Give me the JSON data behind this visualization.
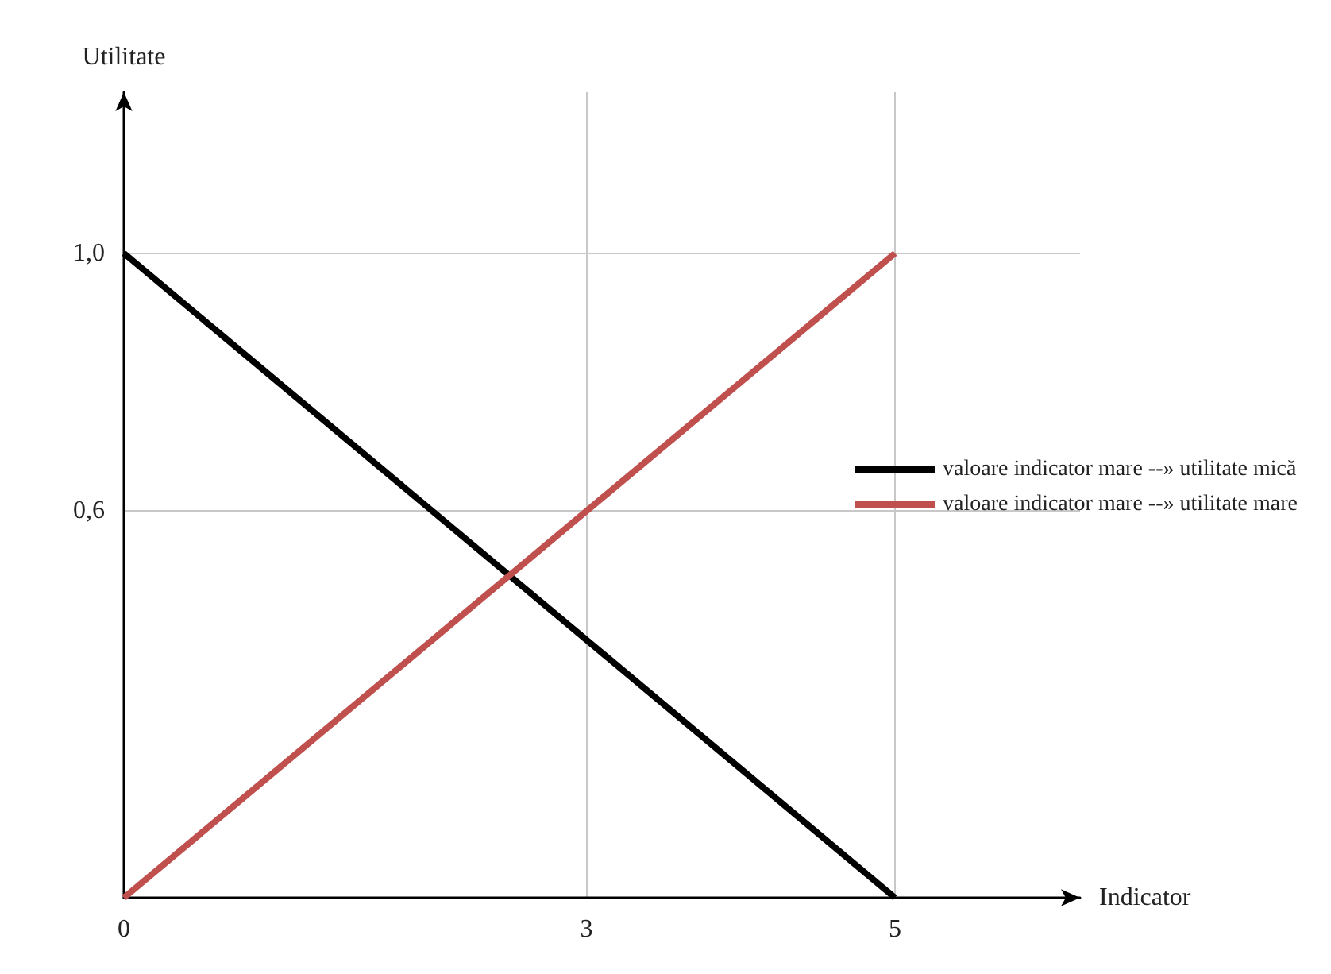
{
  "chart_data": {
    "type": "line",
    "xlabel": "Indicator",
    "ylabel": "Utilitate",
    "x": [
      0,
      5
    ],
    "series": [
      {
        "name": "valoare indicator mare --» utilitate mică",
        "color": "#000000",
        "values": [
          1,
          0
        ]
      },
      {
        "name": "valoare indicator mare --» utilitate mare",
        "color": "#c0504d",
        "values": [
          0,
          1
        ]
      }
    ],
    "xlim": [
      0,
      6.2
    ],
    "ylim": [
      0,
      1.25
    ],
    "xticks": [
      0,
      3,
      5
    ],
    "yticks": [
      {
        "value": 0,
        "label": null
      },
      {
        "value": 0.6,
        "label": "0,6"
      },
      {
        "value": 1,
        "label": "1,0"
      }
    ],
    "grid": true,
    "legend": "right",
    "marker": "none",
    "line_style": "solid"
  }
}
